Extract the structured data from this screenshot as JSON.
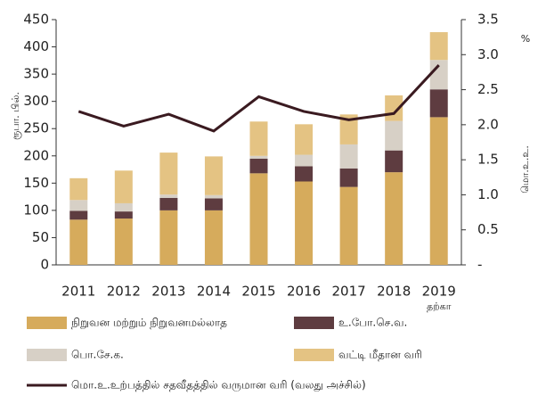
{
  "chart_data": {
    "type": "bar",
    "categories": [
      "2011",
      "2012",
      "2013",
      "2014",
      "2015",
      "2016",
      "2017",
      "2018",
      "2019"
    ],
    "category_note": "தற்கா",
    "ylabel": "ரூபா. பில்.",
    "y2label": "மொ.உ.உ.",
    "y2unit": "%",
    "ylim": [
      0,
      450
    ],
    "yticks": [
      0,
      50,
      100,
      150,
      200,
      250,
      300,
      350,
      400,
      450
    ],
    "y2lim": [
      0,
      3.5
    ],
    "y2ticks": [
      {
        "value": 0,
        "label": "-"
      },
      0.5,
      {
        "value": 1,
        "label": "1.0"
      },
      1.5,
      {
        "value": 2,
        "label": "2.0"
      },
      2.5,
      {
        "value": 3,
        "label": "3.0"
      },
      3.5
    ],
    "series": [
      {
        "name": "நிறுவன மற்றும் நிறுவனமல்லாத",
        "color": "#d6ab5c",
        "values": [
          83,
          85,
          100,
          100,
          168,
          153,
          143,
          170,
          271
        ]
      },
      {
        "name": "உ.போ.செ.வ.",
        "color": "#5e3c40",
        "values": [
          16,
          13,
          23,
          22,
          27,
          28,
          34,
          40,
          51
        ]
      },
      {
        "name": "பொ.சே.க.",
        "color": "#d7d0c6",
        "values": [
          20,
          15,
          6,
          6,
          5,
          21,
          44,
          54,
          54
        ]
      },
      {
        "name": "வட்டி மீதான வரி",
        "color": "#e4c383",
        "values": [
          40,
          60,
          77,
          71,
          63,
          56,
          55,
          47,
          51
        ]
      },
      {
        "name": "மொ.உ.உற்பத்தில் சதவீதத்தில் வருமான வரி (வலது அச்சில்)",
        "color": "#3a1a20",
        "type": "line",
        "axis": "y2",
        "values": [
          2.19,
          1.98,
          2.15,
          1.91,
          2.4,
          2.19,
          2.07,
          2.16,
          2.85
        ]
      }
    ]
  }
}
